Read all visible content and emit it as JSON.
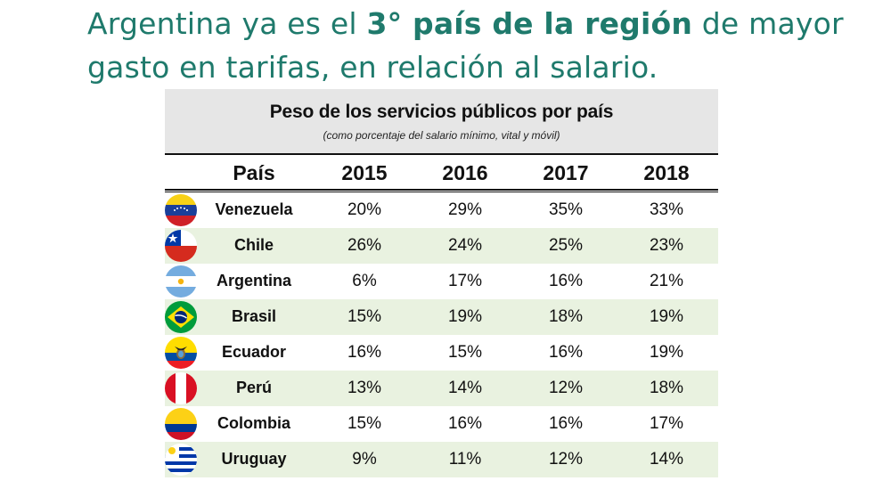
{
  "headline": {
    "part1": "Argentina ya es el ",
    "part2": "3° país de la región",
    "part3": " de mayor gasto en tarifas, en relación al salario."
  },
  "chart_data": {
    "type": "table",
    "title": "Peso de los servicios públicos por país",
    "subtitle": "(como porcentaje del salario mínimo, vital y móvil)",
    "columns": [
      "País",
      "2015",
      "2016",
      "2017",
      "2018"
    ],
    "rows": [
      {
        "country": "Venezuela",
        "flag": "venezuela-flag-icon",
        "values": [
          "20%",
          "29%",
          "35%",
          "33%"
        ]
      },
      {
        "country": "Chile",
        "flag": "chile-flag-icon",
        "values": [
          "26%",
          "24%",
          "25%",
          "23%"
        ]
      },
      {
        "country": "Argentina",
        "flag": "argentina-flag-icon",
        "values": [
          "6%",
          "17%",
          "16%",
          "21%"
        ]
      },
      {
        "country": "Brasil",
        "flag": "brazil-flag-icon",
        "values": [
          "15%",
          "19%",
          "18%",
          "19%"
        ]
      },
      {
        "country": "Ecuador",
        "flag": "ecuador-flag-icon",
        "values": [
          "16%",
          "15%",
          "16%",
          "19%"
        ]
      },
      {
        "country": "Perú",
        "flag": "peru-flag-icon",
        "values": [
          "13%",
          "14%",
          "12%",
          "18%"
        ]
      },
      {
        "country": "Colombia",
        "flag": "colombia-flag-icon",
        "values": [
          "15%",
          "16%",
          "16%",
          "17%"
        ]
      },
      {
        "country": "Uruguay",
        "flag": "uruguay-flag-icon",
        "values": [
          "9%",
          "11%",
          "12%",
          "14%"
        ]
      }
    ]
  },
  "colors": {
    "headline": "#1f7a6c",
    "title_band": "#e6e6e6",
    "row_shade": "#e9f2e0"
  }
}
